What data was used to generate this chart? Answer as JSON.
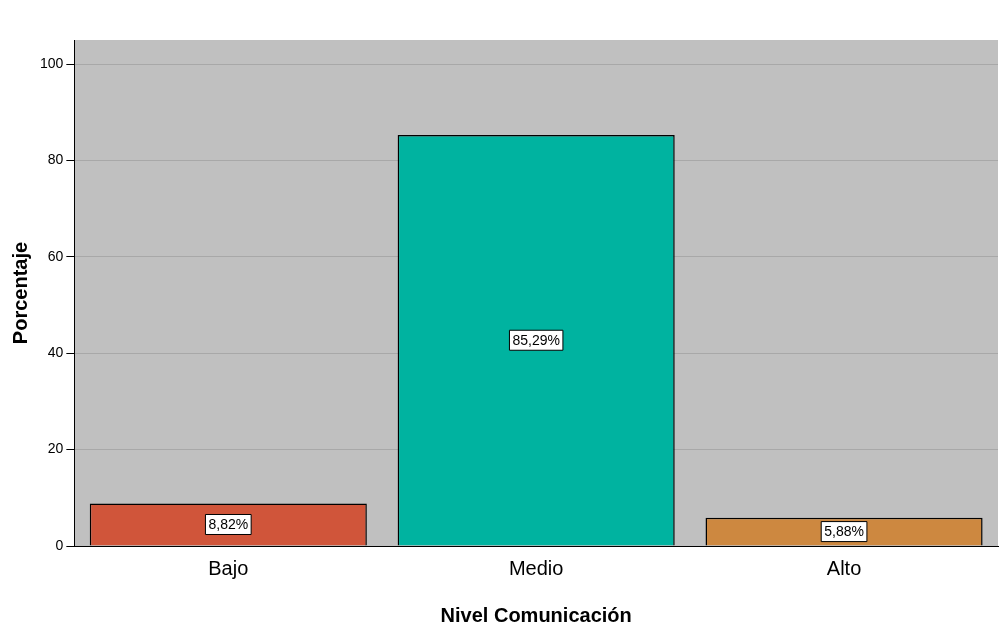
{
  "chart_data": {
    "type": "bar",
    "xlabel": "Nivel Comunicación",
    "ylabel": "Porcentaje",
    "categories": [
      "Bajo",
      "Medio",
      "Alto"
    ],
    "values": [
      8.82,
      85.29,
      5.88
    ],
    "colors": [
      "#d0553a",
      "#00b3a0",
      "#cd8840"
    ],
    "value_labels": [
      "8,82%",
      "85,29%",
      "5,88%"
    ],
    "ylim": [
      0,
      105
    ],
    "yticks": [
      0,
      20,
      40,
      60,
      80,
      100
    ],
    "grid": "y",
    "legend": false
  }
}
